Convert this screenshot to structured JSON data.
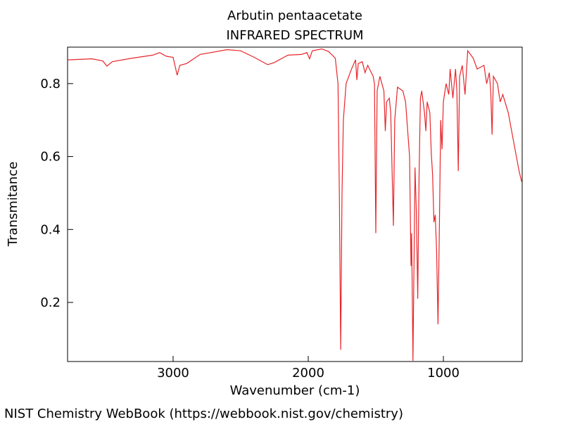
{
  "chart_data": {
    "type": "line",
    "title": "Arbutin pentaacetate",
    "subtitle": "INFRARED SPECTRUM",
    "x_label": "Wavenumber (cm-1)",
    "y_label": "Transmitance",
    "source": "NIST Chemistry WebBook (https://webbook.nist.gov/chemistry)",
    "xlim": [
      3781,
      417
    ],
    "ylim": [
      0.038,
      0.9
    ],
    "xticks": [
      3000,
      2000,
      1000
    ],
    "yticks": [
      0.2,
      0.4,
      0.6,
      0.8
    ],
    "x": [
      3780,
      3600,
      3520,
      3490,
      3450,
      3300,
      3150,
      3100,
      3050,
      3000,
      2970,
      2950,
      2900,
      2800,
      2600,
      2500,
      2400,
      2300,
      2250,
      2150,
      2050,
      2010,
      1990,
      1970,
      1900,
      1850,
      1800,
      1780,
      1770,
      1760,
      1750,
      1740,
      1720,
      1680,
      1650,
      1640,
      1630,
      1600,
      1580,
      1560,
      1520,
      1510,
      1500,
      1490,
      1470,
      1440,
      1430,
      1420,
      1400,
      1390,
      1370,
      1360,
      1340,
      1300,
      1280,
      1250,
      1240,
      1235,
      1225,
      1215,
      1210,
      1200,
      1190,
      1180,
      1170,
      1160,
      1140,
      1130,
      1120,
      1100,
      1090,
      1080,
      1070,
      1060,
      1050,
      1040,
      1030,
      1020,
      1010,
      1000,
      980,
      960,
      950,
      930,
      910,
      900,
      890,
      880,
      860,
      840,
      820,
      780,
      750,
      700,
      680,
      660,
      650,
      640,
      630,
      600,
      580,
      560,
      520,
      480,
      440,
      420
    ],
    "series": [
      {
        "name": "Transmitance",
        "color": "#e8262b",
        "values": [
          0.865,
          0.868,
          0.862,
          0.848,
          0.86,
          0.87,
          0.878,
          0.885,
          0.875,
          0.872,
          0.823,
          0.85,
          0.855,
          0.88,
          0.893,
          0.89,
          0.872,
          0.852,
          0.858,
          0.878,
          0.88,
          0.885,
          0.868,
          0.89,
          0.895,
          0.888,
          0.87,
          0.8,
          0.5,
          0.07,
          0.5,
          0.7,
          0.8,
          0.84,
          0.865,
          0.81,
          0.855,
          0.86,
          0.83,
          0.85,
          0.82,
          0.8,
          0.39,
          0.78,
          0.82,
          0.78,
          0.67,
          0.75,
          0.76,
          0.72,
          0.41,
          0.7,
          0.79,
          0.78,
          0.75,
          0.6,
          0.3,
          0.39,
          0.04,
          0.4,
          0.57,
          0.45,
          0.21,
          0.55,
          0.76,
          0.78,
          0.72,
          0.67,
          0.75,
          0.72,
          0.61,
          0.55,
          0.42,
          0.44,
          0.34,
          0.14,
          0.4,
          0.7,
          0.62,
          0.75,
          0.8,
          0.77,
          0.84,
          0.76,
          0.84,
          0.78,
          0.56,
          0.82,
          0.85,
          0.77,
          0.89,
          0.87,
          0.84,
          0.85,
          0.8,
          0.83,
          0.78,
          0.66,
          0.82,
          0.8,
          0.75,
          0.77,
          0.72,
          0.64,
          0.56,
          0.53
        ]
      }
    ]
  }
}
